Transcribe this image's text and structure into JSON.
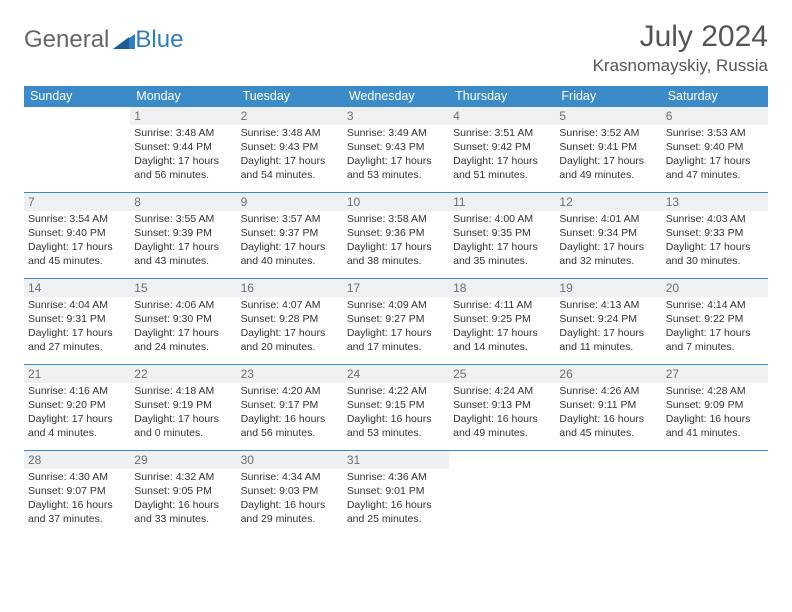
{
  "logo": {
    "part1": "General",
    "part2": "Blue"
  },
  "title": "July 2024",
  "location": "Krasnomayskiy, Russia",
  "colors": {
    "header_bg": "#3b8bc9",
    "header_text": "#ffffff",
    "daynum_bg": "#eef0f2",
    "daynum_text": "#6a6f76",
    "rule": "#3b8bc9",
    "logo_blue": "#2f7fbf"
  },
  "dow": [
    "Sunday",
    "Monday",
    "Tuesday",
    "Wednesday",
    "Thursday",
    "Friday",
    "Saturday"
  ],
  "weeks": [
    [
      null,
      {
        "n": "1",
        "sr": "Sunrise: 3:48 AM",
        "ss": "Sunset: 9:44 PM",
        "d1": "Daylight: 17 hours",
        "d2": "and 56 minutes."
      },
      {
        "n": "2",
        "sr": "Sunrise: 3:48 AM",
        "ss": "Sunset: 9:43 PM",
        "d1": "Daylight: 17 hours",
        "d2": "and 54 minutes."
      },
      {
        "n": "3",
        "sr": "Sunrise: 3:49 AM",
        "ss": "Sunset: 9:43 PM",
        "d1": "Daylight: 17 hours",
        "d2": "and 53 minutes."
      },
      {
        "n": "4",
        "sr": "Sunrise: 3:51 AM",
        "ss": "Sunset: 9:42 PM",
        "d1": "Daylight: 17 hours",
        "d2": "and 51 minutes."
      },
      {
        "n": "5",
        "sr": "Sunrise: 3:52 AM",
        "ss": "Sunset: 9:41 PM",
        "d1": "Daylight: 17 hours",
        "d2": "and 49 minutes."
      },
      {
        "n": "6",
        "sr": "Sunrise: 3:53 AM",
        "ss": "Sunset: 9:40 PM",
        "d1": "Daylight: 17 hours",
        "d2": "and 47 minutes."
      }
    ],
    [
      {
        "n": "7",
        "sr": "Sunrise: 3:54 AM",
        "ss": "Sunset: 9:40 PM",
        "d1": "Daylight: 17 hours",
        "d2": "and 45 minutes."
      },
      {
        "n": "8",
        "sr": "Sunrise: 3:55 AM",
        "ss": "Sunset: 9:39 PM",
        "d1": "Daylight: 17 hours",
        "d2": "and 43 minutes."
      },
      {
        "n": "9",
        "sr": "Sunrise: 3:57 AM",
        "ss": "Sunset: 9:37 PM",
        "d1": "Daylight: 17 hours",
        "d2": "and 40 minutes."
      },
      {
        "n": "10",
        "sr": "Sunrise: 3:58 AM",
        "ss": "Sunset: 9:36 PM",
        "d1": "Daylight: 17 hours",
        "d2": "and 38 minutes."
      },
      {
        "n": "11",
        "sr": "Sunrise: 4:00 AM",
        "ss": "Sunset: 9:35 PM",
        "d1": "Daylight: 17 hours",
        "d2": "and 35 minutes."
      },
      {
        "n": "12",
        "sr": "Sunrise: 4:01 AM",
        "ss": "Sunset: 9:34 PM",
        "d1": "Daylight: 17 hours",
        "d2": "and 32 minutes."
      },
      {
        "n": "13",
        "sr": "Sunrise: 4:03 AM",
        "ss": "Sunset: 9:33 PM",
        "d1": "Daylight: 17 hours",
        "d2": "and 30 minutes."
      }
    ],
    [
      {
        "n": "14",
        "sr": "Sunrise: 4:04 AM",
        "ss": "Sunset: 9:31 PM",
        "d1": "Daylight: 17 hours",
        "d2": "and 27 minutes."
      },
      {
        "n": "15",
        "sr": "Sunrise: 4:06 AM",
        "ss": "Sunset: 9:30 PM",
        "d1": "Daylight: 17 hours",
        "d2": "and 24 minutes."
      },
      {
        "n": "16",
        "sr": "Sunrise: 4:07 AM",
        "ss": "Sunset: 9:28 PM",
        "d1": "Daylight: 17 hours",
        "d2": "and 20 minutes."
      },
      {
        "n": "17",
        "sr": "Sunrise: 4:09 AM",
        "ss": "Sunset: 9:27 PM",
        "d1": "Daylight: 17 hours",
        "d2": "and 17 minutes."
      },
      {
        "n": "18",
        "sr": "Sunrise: 4:11 AM",
        "ss": "Sunset: 9:25 PM",
        "d1": "Daylight: 17 hours",
        "d2": "and 14 minutes."
      },
      {
        "n": "19",
        "sr": "Sunrise: 4:13 AM",
        "ss": "Sunset: 9:24 PM",
        "d1": "Daylight: 17 hours",
        "d2": "and 11 minutes."
      },
      {
        "n": "20",
        "sr": "Sunrise: 4:14 AM",
        "ss": "Sunset: 9:22 PM",
        "d1": "Daylight: 17 hours",
        "d2": "and 7 minutes."
      }
    ],
    [
      {
        "n": "21",
        "sr": "Sunrise: 4:16 AM",
        "ss": "Sunset: 9:20 PM",
        "d1": "Daylight: 17 hours",
        "d2": "and 4 minutes."
      },
      {
        "n": "22",
        "sr": "Sunrise: 4:18 AM",
        "ss": "Sunset: 9:19 PM",
        "d1": "Daylight: 17 hours",
        "d2": "and 0 minutes."
      },
      {
        "n": "23",
        "sr": "Sunrise: 4:20 AM",
        "ss": "Sunset: 9:17 PM",
        "d1": "Daylight: 16 hours",
        "d2": "and 56 minutes."
      },
      {
        "n": "24",
        "sr": "Sunrise: 4:22 AM",
        "ss": "Sunset: 9:15 PM",
        "d1": "Daylight: 16 hours",
        "d2": "and 53 minutes."
      },
      {
        "n": "25",
        "sr": "Sunrise: 4:24 AM",
        "ss": "Sunset: 9:13 PM",
        "d1": "Daylight: 16 hours",
        "d2": "and 49 minutes."
      },
      {
        "n": "26",
        "sr": "Sunrise: 4:26 AM",
        "ss": "Sunset: 9:11 PM",
        "d1": "Daylight: 16 hours",
        "d2": "and 45 minutes."
      },
      {
        "n": "27",
        "sr": "Sunrise: 4:28 AM",
        "ss": "Sunset: 9:09 PM",
        "d1": "Daylight: 16 hours",
        "d2": "and 41 minutes."
      }
    ],
    [
      {
        "n": "28",
        "sr": "Sunrise: 4:30 AM",
        "ss": "Sunset: 9:07 PM",
        "d1": "Daylight: 16 hours",
        "d2": "and 37 minutes."
      },
      {
        "n": "29",
        "sr": "Sunrise: 4:32 AM",
        "ss": "Sunset: 9:05 PM",
        "d1": "Daylight: 16 hours",
        "d2": "and 33 minutes."
      },
      {
        "n": "30",
        "sr": "Sunrise: 4:34 AM",
        "ss": "Sunset: 9:03 PM",
        "d1": "Daylight: 16 hours",
        "d2": "and 29 minutes."
      },
      {
        "n": "31",
        "sr": "Sunrise: 4:36 AM",
        "ss": "Sunset: 9:01 PM",
        "d1": "Daylight: 16 hours",
        "d2": "and 25 minutes."
      },
      null,
      null,
      null
    ]
  ]
}
